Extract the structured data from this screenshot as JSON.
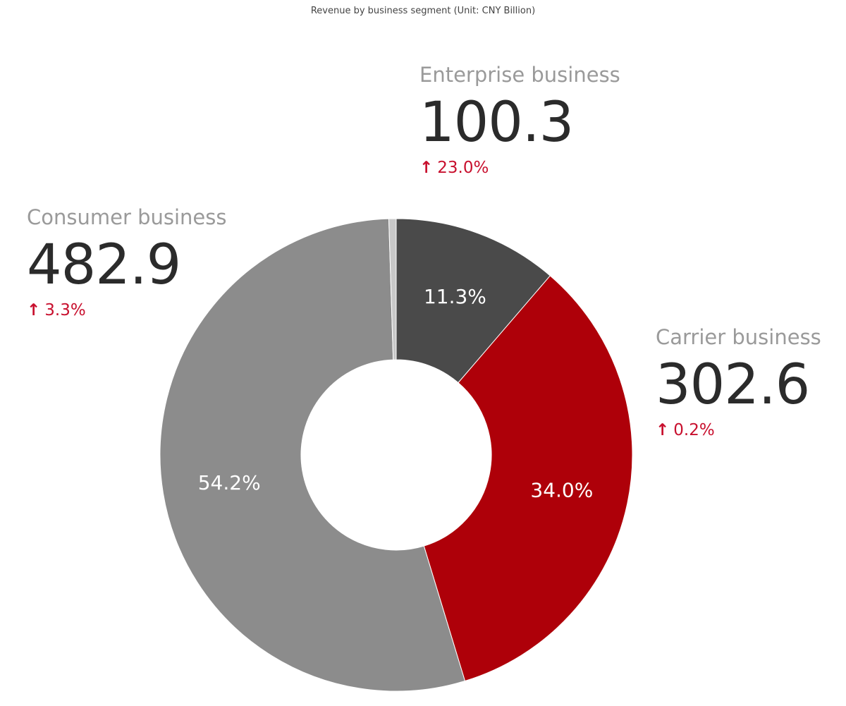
{
  "chart_data": {
    "type": "pie",
    "title": "Revenue by business segment (Unit: CNY Billion)",
    "donut": true,
    "series": [
      {
        "name": "Enterprise business",
        "value": 100.3,
        "share_label": "11.3%",
        "share": 11.3,
        "change": "23.0%",
        "color": "#4a4a4a"
      },
      {
        "name": "Carrier business",
        "value": 302.6,
        "share_label": "34.0%",
        "share": 34.0,
        "change": "0.2%",
        "color": "#ae0009"
      },
      {
        "name": "Consumer business",
        "value": 482.9,
        "share_label": "54.2%",
        "share": 54.2,
        "change": "3.3%",
        "color": "#8c8c8c"
      },
      {
        "share": 0.5,
        "color": "#c8c8c8"
      }
    ]
  }
}
